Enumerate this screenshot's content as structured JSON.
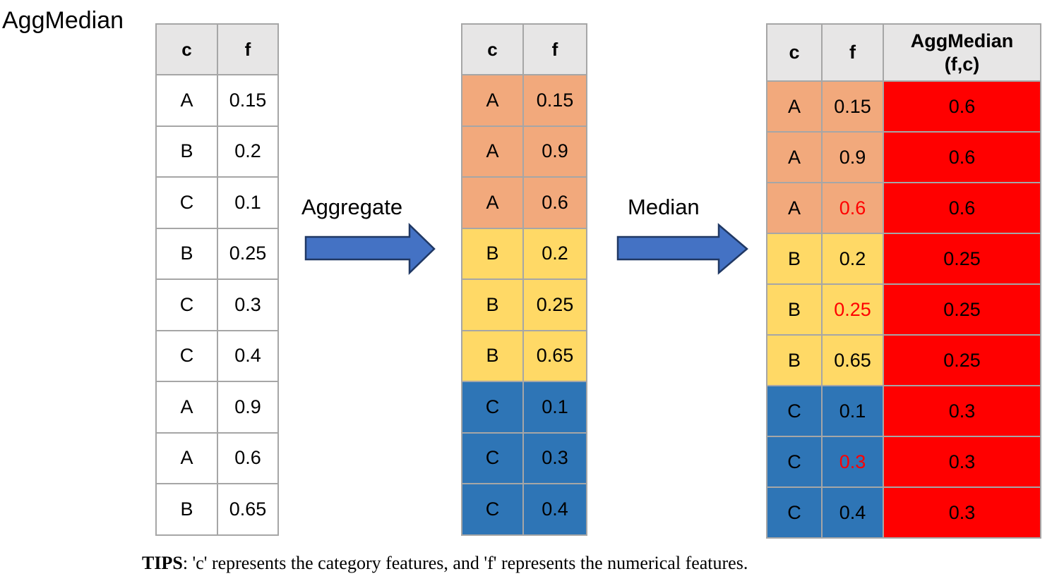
{
  "title": "AggMedian",
  "arrows": [
    {
      "label": "Aggregate"
    },
    {
      "label": "Median"
    }
  ],
  "tables": {
    "input": {
      "headers": [
        "c",
        "f"
      ],
      "rows": [
        {
          "c": "A",
          "f": "0.15"
        },
        {
          "c": "B",
          "f": "0.2"
        },
        {
          "c": "C",
          "f": "0.1"
        },
        {
          "c": "B",
          "f": "0.25"
        },
        {
          "c": "C",
          "f": "0.3"
        },
        {
          "c": "C",
          "f": "0.4"
        },
        {
          "c": "A",
          "f": "0.9"
        },
        {
          "c": "A",
          "f": "0.6"
        },
        {
          "c": "B",
          "f": "0.65"
        }
      ]
    },
    "aggregated": {
      "headers": [
        "c",
        "f"
      ],
      "rows": [
        {
          "c": "A",
          "f": "0.15",
          "group": "a"
        },
        {
          "c": "A",
          "f": "0.9",
          "group": "a"
        },
        {
          "c": "A",
          "f": "0.6",
          "group": "a"
        },
        {
          "c": "B",
          "f": "0.2",
          "group": "b"
        },
        {
          "c": "B",
          "f": "0.25",
          "group": "b"
        },
        {
          "c": "B",
          "f": "0.65",
          "group": "b"
        },
        {
          "c": "C",
          "f": "0.1",
          "group": "c"
        },
        {
          "c": "C",
          "f": "0.3",
          "group": "c"
        },
        {
          "c": "C",
          "f": "0.4",
          "group": "c"
        }
      ]
    },
    "result": {
      "headers": [
        "c",
        "f",
        "AggMedian (f,c)"
      ],
      "rows": [
        {
          "c": "A",
          "f": "0.15",
          "agg": "0.6",
          "group": "a",
          "median": false
        },
        {
          "c": "A",
          "f": "0.9",
          "agg": "0.6",
          "group": "a",
          "median": false
        },
        {
          "c": "A",
          "f": "0.6",
          "agg": "0.6",
          "group": "a",
          "median": true
        },
        {
          "c": "B",
          "f": "0.2",
          "agg": "0.25",
          "group": "b",
          "median": false
        },
        {
          "c": "B",
          "f": "0.25",
          "agg": "0.25",
          "group": "b",
          "median": true
        },
        {
          "c": "B",
          "f": "0.65",
          "agg": "0.25",
          "group": "b",
          "median": false
        },
        {
          "c": "C",
          "f": "0.1",
          "agg": "0.3",
          "group": "c",
          "median": false
        },
        {
          "c": "C",
          "f": "0.3",
          "agg": "0.3",
          "group": "c",
          "median": true
        },
        {
          "c": "C",
          "f": "0.4",
          "agg": "0.3",
          "group": "c",
          "median": false
        }
      ]
    }
  },
  "tips": {
    "label": "TIPS",
    "text": ": 'c' represents the category features, and 'f' represents the numerical features."
  },
  "colors": {
    "group_a": "#f2a97c",
    "group_b": "#ffd966",
    "group_c": "#2e75b6",
    "result_column_bg": "#ff0000",
    "median_text": "#ff0000",
    "header_bg": "#e7e6e6",
    "table_border": "#a6a6a6",
    "arrow_fill": "#4472c4",
    "arrow_stroke": "#203864"
  }
}
